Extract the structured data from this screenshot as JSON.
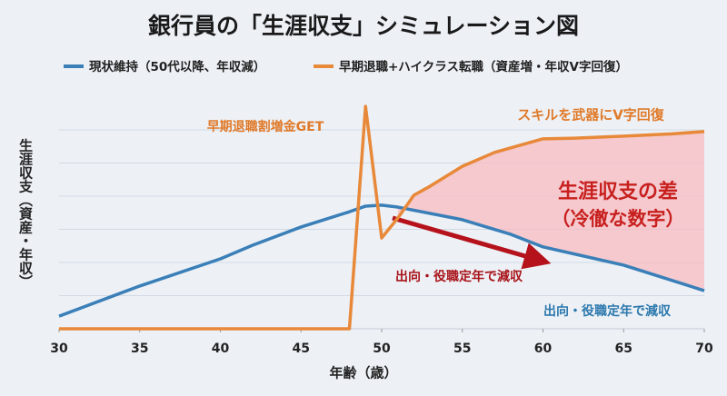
{
  "chart_data": {
    "type": "line",
    "title": "銀行員の「生涯収支」シミュレーション図",
    "x_label": "年齢（歳）",
    "y_label": "生涯収支（資産・年収）",
    "xlim": [
      30,
      70
    ],
    "xticks": [
      30,
      35,
      40,
      45,
      50,
      55,
      60,
      65,
      70
    ],
    "ylim": [
      0,
      7
    ],
    "grid": true,
    "series": [
      {
        "name": "現状維持（50代以降、年収減）",
        "color": "#3a7fb8",
        "x": [
          30,
          35,
          40,
          42,
          45,
          48,
          49,
          50,
          51,
          55,
          58,
          60,
          65,
          70
        ],
        "values": [
          0.38,
          1.29,
          2.11,
          2.52,
          3.07,
          3.53,
          3.7,
          3.73,
          3.67,
          3.29,
          2.85,
          2.47,
          1.92,
          1.15
        ]
      },
      {
        "name": "早期退職+ハイクラス転職（資産増・年収V字回復）",
        "color": "#e8893a",
        "x": [
          30,
          48,
          49,
          50,
          51,
          52,
          53,
          55,
          57,
          60,
          62,
          65,
          68,
          70
        ],
        "values": [
          0,
          0,
          6.71,
          2.74,
          3.34,
          4.03,
          4.3,
          4.9,
          5.32,
          5.73,
          5.75,
          5.81,
          5.88,
          5.95
        ]
      }
    ],
    "annotations": [
      {
        "text": "早期退職割増金GET",
        "color": "#e07a2a"
      },
      {
        "text": "スキルを武器にV字回復",
        "color": "#e07a2a"
      },
      {
        "text": "生涯収支の差",
        "color": "#c8201e"
      },
      {
        "text": "（冷徹な数字）",
        "color": "#c8201e"
      },
      {
        "text": "出向・役職定年で減収",
        "color": "#a8141a"
      },
      {
        "text": "出向・役職定年で減収",
        "color": "#2c78ad"
      }
    ]
  }
}
